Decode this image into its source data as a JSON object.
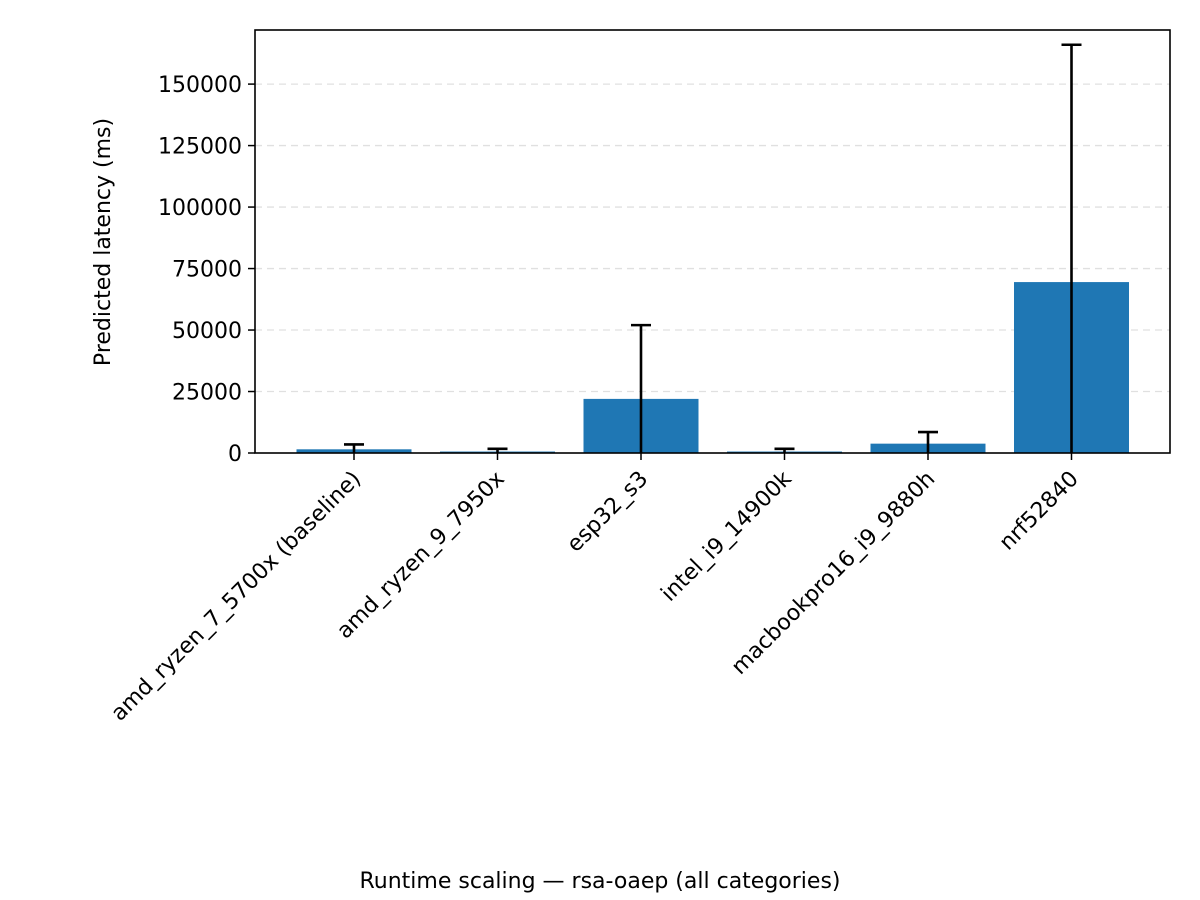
{
  "chart_data": {
    "type": "bar",
    "categories": [
      "amd_ryzen_7_5700x (baseline)",
      "amd_ryzen_9_7950x",
      "esp32_s3",
      "intel_i9_14900k",
      "macbookpro16_i9_9880h",
      "nrf52840"
    ],
    "series": [
      {
        "values": [
          1500,
          600,
          22000,
          600,
          3800,
          69500
        ],
        "error_high": [
          3500,
          1700,
          52000,
          1700,
          8500,
          166000
        ],
        "error_low": [
          0,
          0,
          0,
          0,
          0,
          0
        ]
      }
    ],
    "title": "",
    "caption": "Runtime scaling — rsa-oaep (all categories)",
    "xlabel": "",
    "ylabel": "Predicted latency (ms)",
    "ylim": [
      0,
      172000
    ],
    "yticks": [
      0,
      25000,
      50000,
      75000,
      100000,
      125000,
      150000
    ],
    "ytick_labels": [
      "0",
      "25000",
      "50000",
      "75000",
      "100000",
      "125000",
      "150000"
    ],
    "grid": "y-dashed",
    "legend": "none",
    "colors": {
      "bar": "#1f77b4",
      "error_bar": "#000000",
      "grid": "#e0e0e0",
      "axis": "#000000"
    }
  }
}
